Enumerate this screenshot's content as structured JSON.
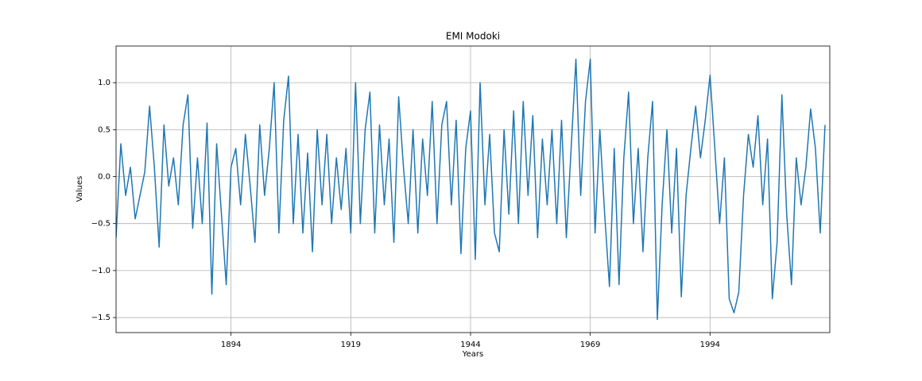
{
  "chart_data": {
    "type": "line",
    "title": "EMI Modoki",
    "xlabel": "Years",
    "ylabel": "Values",
    "x": [
      1870,
      1871,
      1872,
      1873,
      1874,
      1875,
      1876,
      1877,
      1878,
      1879,
      1880,
      1881,
      1882,
      1883,
      1884,
      1885,
      1886,
      1887,
      1888,
      1889,
      1890,
      1891,
      1892,
      1893,
      1894,
      1895,
      1896,
      1897,
      1898,
      1899,
      1900,
      1901,
      1902,
      1903,
      1904,
      1905,
      1906,
      1907,
      1908,
      1909,
      1910,
      1911,
      1912,
      1913,
      1914,
      1915,
      1916,
      1917,
      1918,
      1919,
      1920,
      1921,
      1922,
      1923,
      1924,
      1925,
      1926,
      1927,
      1928,
      1929,
      1930,
      1931,
      1932,
      1933,
      1934,
      1935,
      1936,
      1937,
      1938,
      1939,
      1940,
      1941,
      1942,
      1943,
      1944,
      1945,
      1946,
      1947,
      1948,
      1949,
      1950,
      1951,
      1952,
      1953,
      1954,
      1955,
      1956,
      1957,
      1958,
      1959,
      1960,
      1961,
      1962,
      1963,
      1964,
      1965,
      1966,
      1967,
      1968,
      1969,
      1970,
      1971,
      1972,
      1973,
      1974,
      1975,
      1976,
      1977,
      1978,
      1979,
      1980,
      1981,
      1982,
      1983,
      1984,
      1985,
      1986,
      1987,
      1988,
      1989,
      1990,
      1991,
      1992,
      1993,
      1994,
      1995,
      1996,
      1997,
      1998,
      1999,
      2000,
      2001,
      2002,
      2003,
      2004,
      2005,
      2006,
      2007,
      2008,
      2009,
      2010,
      2011,
      2012,
      2013,
      2014,
      2015,
      2016,
      2017,
      2018
    ],
    "values": [
      -0.65,
      0.35,
      -0.2,
      0.1,
      -0.45,
      -0.2,
      0.05,
      0.75,
      0.1,
      -0.75,
      0.55,
      -0.1,
      0.2,
      -0.3,
      0.55,
      0.87,
      -0.55,
      0.2,
      -0.5,
      0.57,
      -1.25,
      0.35,
      -0.4,
      -1.15,
      0.1,
      0.3,
      -0.3,
      0.45,
      -0.1,
      -0.7,
      0.55,
      -0.2,
      0.3,
      1.0,
      -0.6,
      0.6,
      1.07,
      -0.5,
      0.45,
      -0.6,
      0.25,
      -0.8,
      0.5,
      -0.3,
      0.45,
      -0.5,
      0.2,
      -0.35,
      0.3,
      -0.6,
      1.0,
      -0.5,
      0.5,
      0.9,
      -0.6,
      0.55,
      -0.3,
      0.4,
      -0.7,
      0.85,
      0.1,
      -0.5,
      0.5,
      -0.6,
      0.4,
      -0.2,
      0.8,
      -0.5,
      0.55,
      0.8,
      -0.3,
      0.6,
      -0.82,
      0.3,
      0.7,
      -0.88,
      1.0,
      -0.3,
      0.45,
      -0.6,
      -0.8,
      0.5,
      -0.4,
      0.7,
      -0.5,
      0.8,
      -0.2,
      0.65,
      -0.65,
      0.4,
      -0.3,
      0.5,
      -0.5,
      0.6,
      -0.65,
      0.3,
      1.25,
      -0.2,
      0.8,
      1.25,
      -0.6,
      0.5,
      -0.4,
      -1.17,
      0.3,
      -1.15,
      0.2,
      0.9,
      -0.5,
      0.3,
      -0.8,
      0.2,
      0.8,
      -1.52,
      -0.3,
      0.5,
      -0.6,
      0.3,
      -1.28,
      -0.2,
      0.3,
      0.75,
      0.2,
      0.6,
      1.08,
      0.3,
      -0.5,
      0.2,
      -1.3,
      -1.45,
      -1.23,
      -0.2,
      0.45,
      0.1,
      0.65,
      -0.3,
      0.4,
      -1.3,
      -0.7,
      0.87,
      -0.4,
      -1.15,
      0.2,
      -0.3,
      0.1,
      0.72,
      0.3,
      -0.6,
      0.55
    ],
    "color": "#1f77b4",
    "xlim": [
      1870,
      2019
    ],
    "xticks": [
      1894,
      1919,
      1944,
      1969,
      1994
    ],
    "ylim": [
      -1.66,
      1.39
    ],
    "yticks": [
      {
        "value": -1.5,
        "label": "−1.5"
      },
      {
        "value": -1.0,
        "label": "−1.0"
      },
      {
        "value": -0.5,
        "label": "−0.5"
      },
      {
        "value": 0,
        "label": "0.0"
      },
      {
        "value": 0.5,
        "label": "0.5"
      },
      {
        "value": 1.0,
        "label": "1.0"
      }
    ],
    "grid": true
  }
}
